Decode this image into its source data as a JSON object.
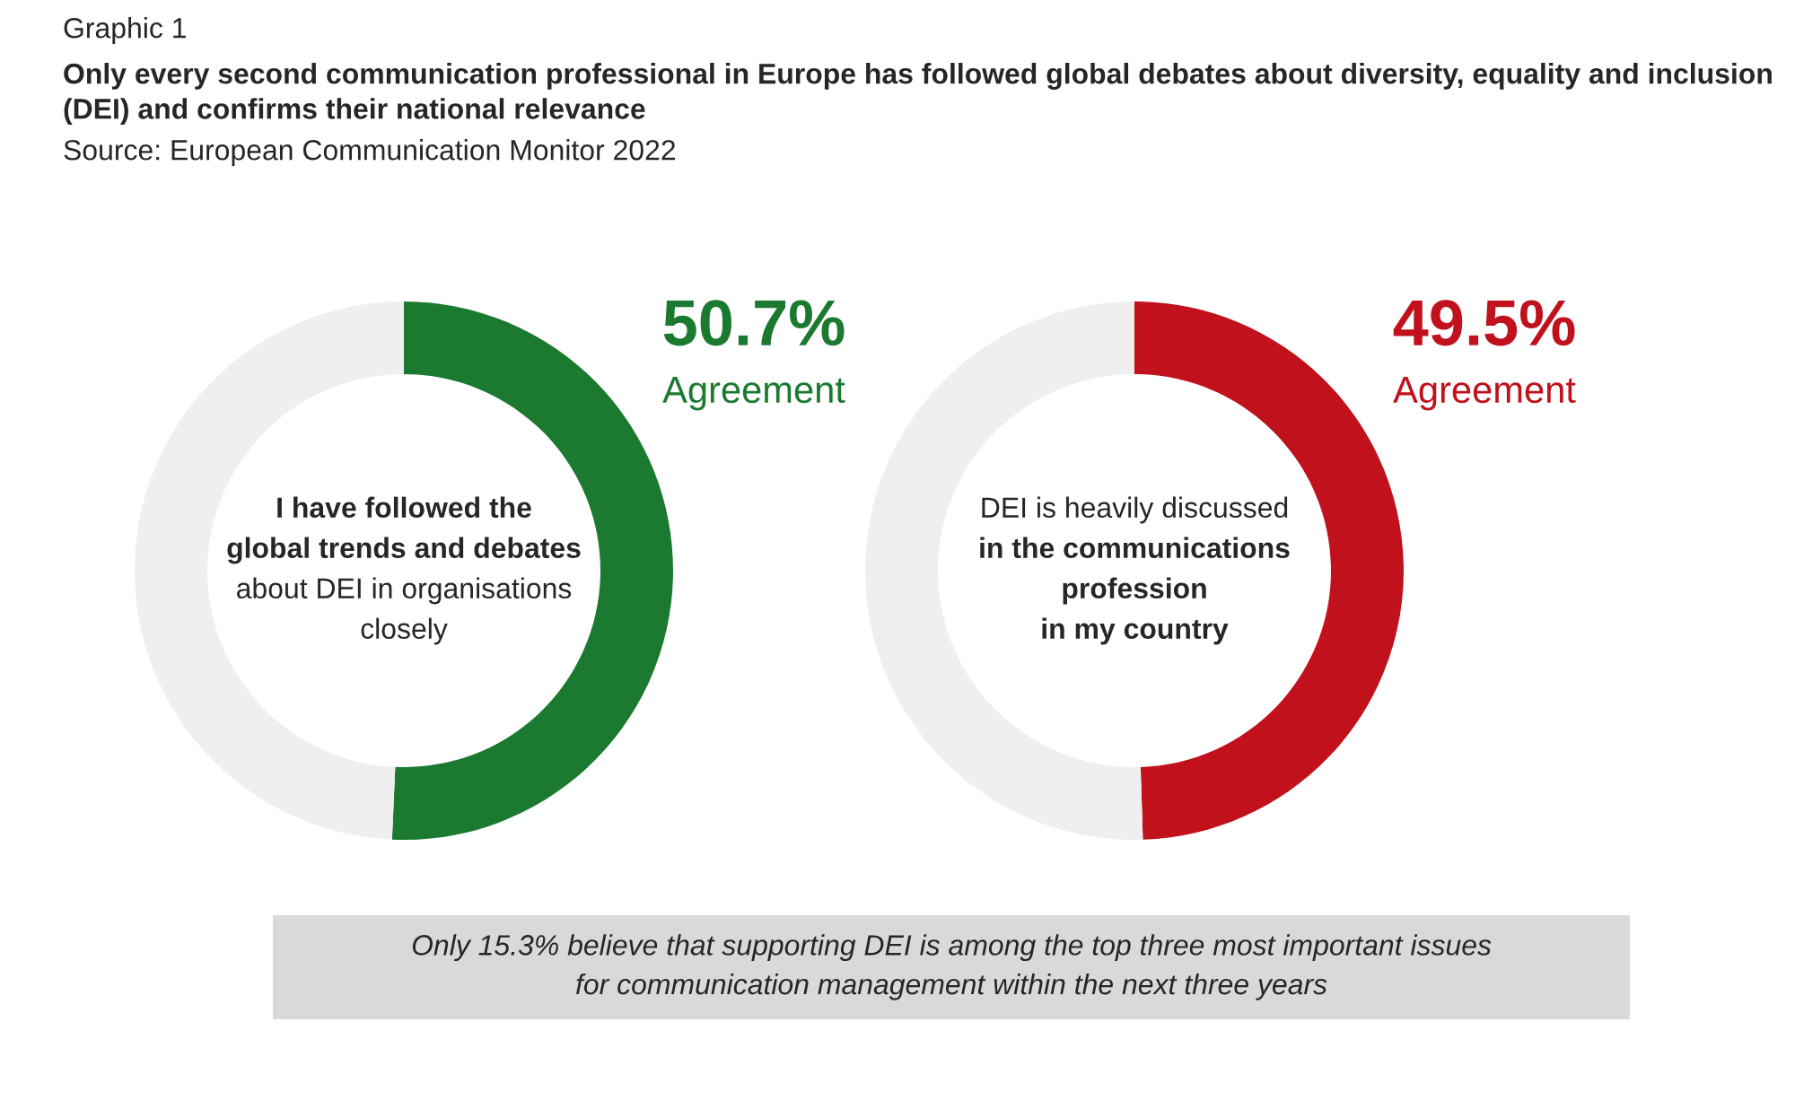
{
  "chart_data": [
    {
      "type": "donut",
      "title": "Graphic 1",
      "subtitle": "Only every second communication professional in Europe has followed global debates about diversity, equality and inclusion (DEI) and confirms their national relevance",
      "categories": [
        "Agreement",
        null
      ],
      "values": [
        50.7,
        49.3
      ],
      "colors": [
        "#1b7a2f",
        "#efefef"
      ],
      "value_labels": [
        "50.7%",
        null
      ],
      "annotations": [
        "Source: European Communication Monitor 2022",
        "I have followed the\nglobal trends and debates\nabout DEI in organisations\nclosely",
        "Only 15.3% believe that supporting DEI is among the top three most important issues\nfor communication management within the next three years"
      ]
    },
    {
      "type": "donut",
      "categories": [
        "Agreement",
        null
      ],
      "values": [
        49.5,
        50.5
      ],
      "colors": [
        "#c0111c",
        "#efefef"
      ],
      "value_labels": [
        "49.5%",
        null
      ],
      "annotations": [
        "DEI is heavily discussed\nin the communications\nprofession\nin my country"
      ]
    }
  ]
}
